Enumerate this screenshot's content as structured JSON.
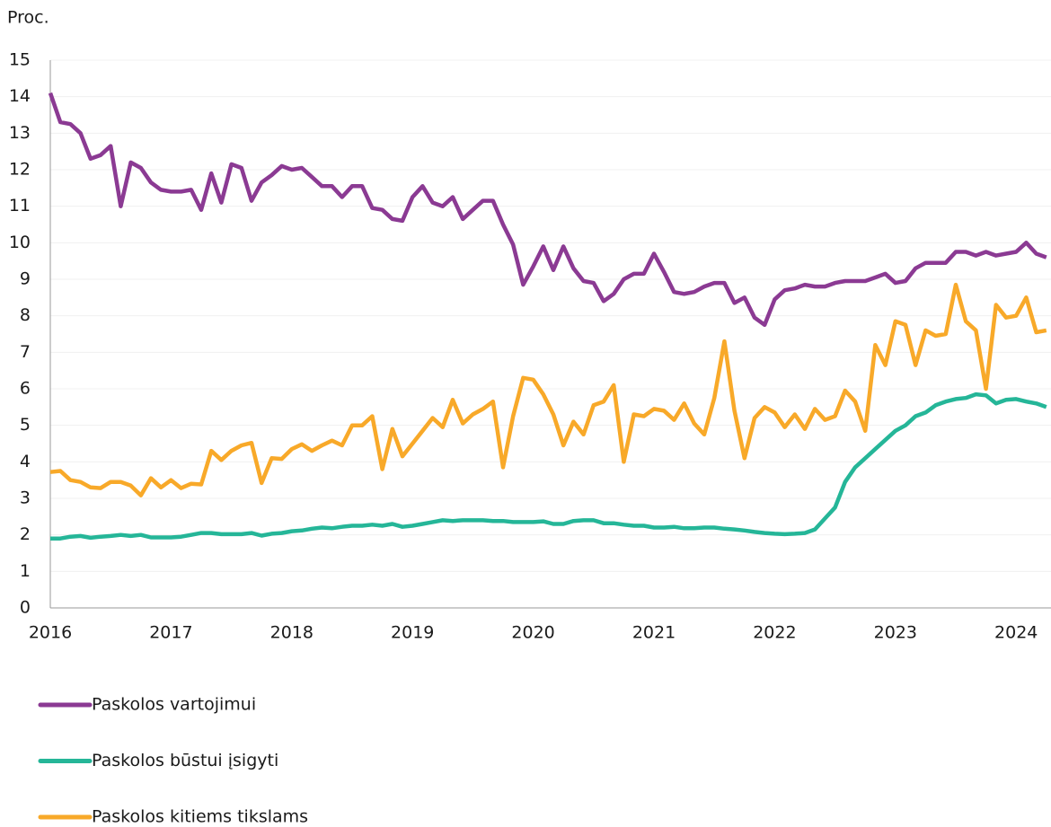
{
  "chart_data": {
    "type": "line",
    "y_label": "Proc.",
    "categories": [
      "2016",
      null,
      null,
      null,
      null,
      null,
      null,
      null,
      null,
      null,
      null,
      null,
      "2017",
      null,
      null,
      null,
      null,
      null,
      null,
      null,
      null,
      null,
      null,
      null,
      "2018",
      null,
      null,
      null,
      null,
      null,
      null,
      null,
      null,
      null,
      null,
      null,
      "2019",
      null,
      null,
      null,
      null,
      null,
      null,
      null,
      null,
      null,
      null,
      null,
      "2020",
      null,
      null,
      null,
      null,
      null,
      null,
      null,
      null,
      null,
      null,
      null,
      "2021",
      null,
      null,
      null,
      null,
      null,
      null,
      null,
      null,
      null,
      null,
      null,
      "2022",
      null,
      null,
      null,
      null,
      null,
      null,
      null,
      null,
      null,
      null,
      null,
      "2023",
      null,
      null,
      null,
      null,
      null,
      null,
      null,
      null,
      null,
      null,
      null,
      "2024",
      null,
      null,
      null
    ],
    "series": [
      {
        "name": "Paskolos vartojimui",
        "color": "#8b3a93",
        "values": [
          14.1,
          13.3,
          13.25,
          13.0,
          12.3,
          12.4,
          12.65,
          11.0,
          12.2,
          12.05,
          11.65,
          11.45,
          11.4,
          11.4,
          11.45,
          10.9,
          11.9,
          11.1,
          12.15,
          12.05,
          11.15,
          11.65,
          11.85,
          12.1,
          12.0,
          12.05,
          11.8,
          11.55,
          11.55,
          11.25,
          11.55,
          11.55,
          10.95,
          10.9,
          10.65,
          10.6,
          11.25,
          11.55,
          11.1,
          11.0,
          11.25,
          10.65,
          10.9,
          11.15,
          11.15,
          10.5,
          9.95,
          8.85,
          9.35,
          9.9,
          9.25,
          9.9,
          9.3,
          8.95,
          8.9,
          8.4,
          8.6,
          9.0,
          9.15,
          9.15,
          9.7,
          9.2,
          8.65,
          8.6,
          8.65,
          8.8,
          8.9,
          8.9,
          8.35,
          8.5,
          7.95,
          7.75,
          8.45,
          8.7,
          8.75,
          8.85,
          8.8,
          8.8,
          8.9,
          8.95,
          8.95,
          8.95,
          9.05,
          9.15,
          8.9,
          8.95,
          9.3,
          9.45,
          9.45,
          9.45,
          9.75,
          9.75,
          9.65,
          9.75,
          9.65,
          9.7,
          9.75,
          10.0,
          9.7,
          9.6
        ]
      },
      {
        "name": "Paskolos būstui įsigyti",
        "color": "#25b698",
        "values": [
          1.9,
          1.9,
          1.95,
          1.97,
          1.92,
          1.95,
          1.97,
          2.0,
          1.97,
          2.0,
          1.93,
          1.93,
          1.93,
          1.95,
          2.0,
          2.05,
          2.05,
          2.02,
          2.02,
          2.02,
          2.05,
          1.98,
          2.03,
          2.05,
          2.1,
          2.12,
          2.17,
          2.2,
          2.18,
          2.22,
          2.25,
          2.25,
          2.28,
          2.25,
          2.3,
          2.22,
          2.25,
          2.3,
          2.35,
          2.4,
          2.38,
          2.4,
          2.4,
          2.4,
          2.38,
          2.38,
          2.35,
          2.35,
          2.35,
          2.37,
          2.3,
          2.3,
          2.38,
          2.4,
          2.4,
          2.32,
          2.32,
          2.28,
          2.25,
          2.25,
          2.2,
          2.2,
          2.22,
          2.18,
          2.18,
          2.2,
          2.2,
          2.17,
          2.15,
          2.12,
          2.08,
          2.05,
          2.03,
          2.02,
          2.03,
          2.05,
          2.15,
          2.45,
          2.75,
          3.45,
          3.85,
          4.1,
          4.35,
          4.6,
          4.85,
          5.0,
          5.25,
          5.35,
          5.55,
          5.65,
          5.72,
          5.75,
          5.85,
          5.82,
          5.6,
          5.7,
          5.72,
          5.65,
          5.6,
          5.5
        ]
      },
      {
        "name": "Paskolos kitiems tikslams",
        "color": "#f8a929",
        "values": [
          3.72,
          3.75,
          3.5,
          3.45,
          3.3,
          3.28,
          3.45,
          3.45,
          3.35,
          3.08,
          3.55,
          3.3,
          3.5,
          3.28,
          3.4,
          3.38,
          4.3,
          4.05,
          4.3,
          4.45,
          4.52,
          3.42,
          4.1,
          4.08,
          4.35,
          4.48,
          4.3,
          4.45,
          4.58,
          4.45,
          5.0,
          5.0,
          5.25,
          3.8,
          4.9,
          4.15,
          4.5,
          4.85,
          5.2,
          4.95,
          5.7,
          5.05,
          5.3,
          5.45,
          5.65,
          3.85,
          5.25,
          6.3,
          6.25,
          5.85,
          5.3,
          4.45,
          5.1,
          4.75,
          5.55,
          5.65,
          6.1,
          4.0,
          5.3,
          5.25,
          5.45,
          5.4,
          5.15,
          5.6,
          5.05,
          4.75,
          5.75,
          7.3,
          5.4,
          4.1,
          5.2,
          5.5,
          5.35,
          4.95,
          5.3,
          4.9,
          5.45,
          5.15,
          5.25,
          5.95,
          5.65,
          4.85,
          7.2,
          6.65,
          7.85,
          7.75,
          6.65,
          7.6,
          7.45,
          7.5,
          8.85,
          7.85,
          7.6,
          6.0,
          8.3,
          7.95,
          8.0,
          8.5,
          7.55,
          7.6
        ]
      }
    ],
    "ylim": [
      0,
      15
    ],
    "yticks": [
      0,
      1,
      2,
      3,
      4,
      5,
      6,
      7,
      8,
      9,
      10,
      11,
      12,
      13,
      14,
      15
    ],
    "grid": true,
    "legend": "bottom"
  }
}
